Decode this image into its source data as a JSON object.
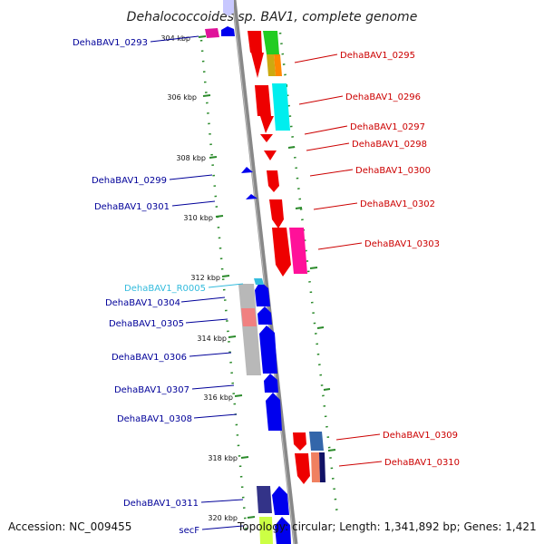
{
  "title": "Dehalococcoides sp. BAV1, complete genome",
  "accession": "Accession: NC_009455",
  "topology": "Topology: circular; Length: 1,341,892 bp; Genes: 1,421",
  "colors": {
    "forward_label": "#cc0000",
    "reverse_label": "#000099",
    "rna_label": "#33bbdd",
    "backbone": "#888888",
    "tick": "#2a8a2a"
  },
  "scale_ticks": [
    "304 kbp",
    "306 kbp",
    "308 kbp",
    "310 kbp",
    "312 kbp",
    "314 kbp",
    "316 kbp",
    "318 kbp",
    "320 kbp"
  ],
  "forward_genes": [
    "DehaBAV1_0295",
    "DehaBAV1_0296",
    "DehaBAV1_0297",
    "DehaBAV1_0298",
    "DehaBAV1_0300",
    "DehaBAV1_0302",
    "DehaBAV1_0303",
    "DehaBAV1_0309",
    "DehaBAV1_0310"
  ],
  "reverse_genes": [
    "DehaBAV1_0293",
    "DehaBAV1_0299",
    "DehaBAV1_0301",
    "DehaBAV1_0304",
    "DehaBAV1_0305",
    "DehaBAV1_0306",
    "DehaBAV1_0307",
    "DehaBAV1_0308",
    "DehaBAV1_0311",
    "secF"
  ],
  "rna_genes": [
    "DehaBAV1_R0005"
  ]
}
